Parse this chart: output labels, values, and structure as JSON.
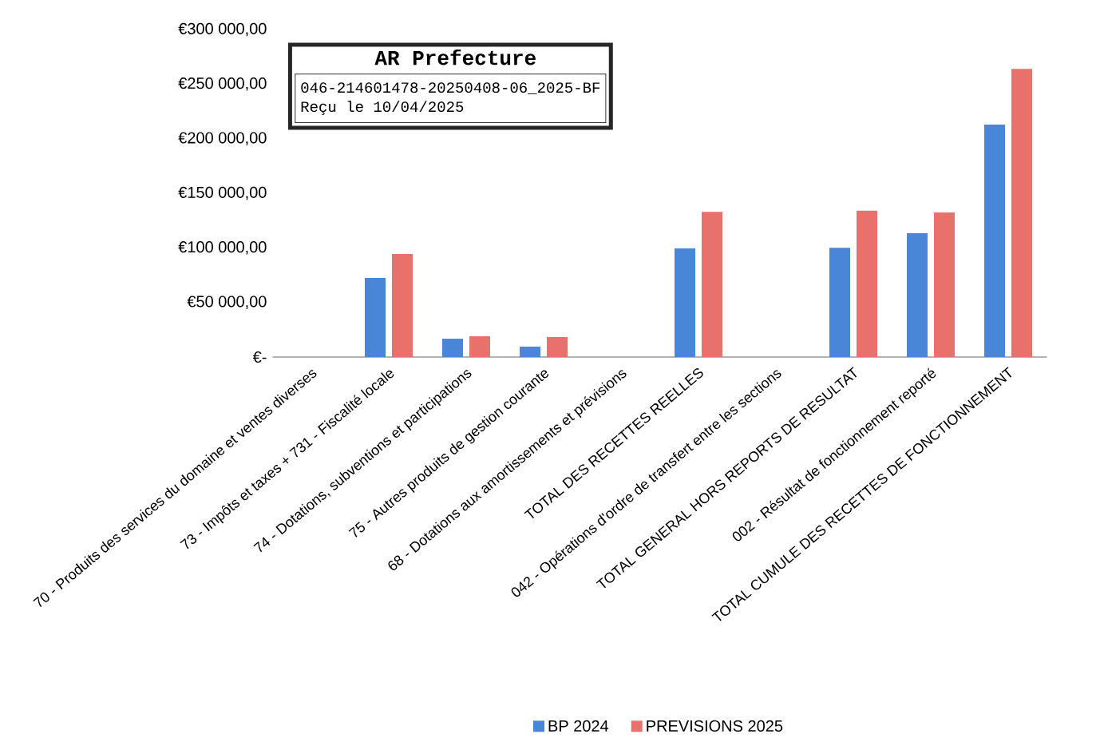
{
  "chart_data": {
    "type": "bar",
    "categories": [
      "70 - Produits des services du domaine et ventes diverses",
      "73 - Impôts et taxes + 731 - Fiscalité locale",
      "74 - Dotations, subventions et participations",
      "75 - Autres produits de gestion courante",
      "68 - Dotations aux amortissements et prévisions",
      "TOTAL DES RECETTES REELLES",
      "042 - Opérations d'ordre de transfert entre les sections",
      "TOTAL GENERAL HORS REPORTS DE RESULTAT",
      "002 - Résultat de fonctionnement reporté",
      "TOTAL CUMULE DES RECETTES DE FONCTIONNEMENT"
    ],
    "series": [
      {
        "name": "BP 2024",
        "color": "#4a86d8",
        "values": [
          0,
          72500,
          16800,
          9500,
          0,
          99600,
          0,
          100000,
          113500,
          213000
        ]
      },
      {
        "name": "PREVISIONS 2025",
        "color": "#e8716b",
        "values": [
          0,
          94400,
          19000,
          18300,
          0,
          133000,
          0,
          134000,
          132500,
          264000
        ]
      }
    ],
    "ylim": [
      0,
      300000
    ],
    "yticks": [
      {
        "value": 0,
        "label": "€-"
      },
      {
        "value": 50000,
        "label": "€50 000,00"
      },
      {
        "value": 100000,
        "label": "€100 000,00"
      },
      {
        "value": 150000,
        "label": "€150 000,00"
      },
      {
        "value": 200000,
        "label": "€200 000,00"
      },
      {
        "value": 250000,
        "label": "€250 000,00"
      },
      {
        "value": 300000,
        "label": "€300 000,00"
      }
    ],
    "grid": false,
    "legend": "bottom",
    "annotations": [
      "AR Prefecture",
      "046-214601478-20250408-06_2025-BF",
      "Reçu le 10/04/2025"
    ]
  }
}
